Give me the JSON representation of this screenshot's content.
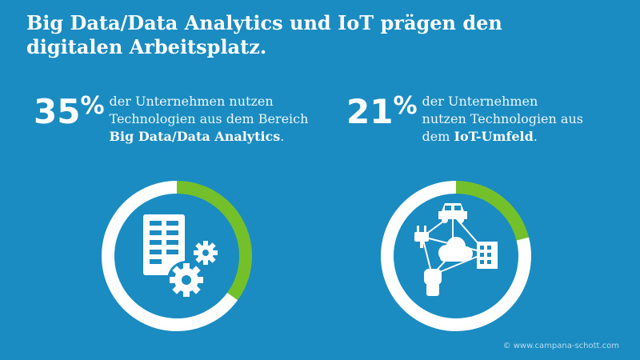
{
  "title": {
    "line1": "Big Data/Data Analytics und IoT prägen den",
    "line2": "digitalen Arbeitsplatz."
  },
  "stats": [
    {
      "value": "35",
      "unit": "%",
      "text_a": "der Unternehmen nutzen",
      "text_b": "Technologien aus dem Bereich",
      "text_bold": "Big Data/Data Analytics",
      "text_end": "."
    },
    {
      "value": "21",
      "unit": "%",
      "text_a": "der Unternehmen",
      "text_b": "nutzen Technologien aus",
      "text_c": "dem",
      "text_bold": "IoT-Umfeld",
      "text_end": "."
    }
  ],
  "chart_data": [
    {
      "type": "pie",
      "style": "donut",
      "categories": [
        "Big Data/Data Analytics",
        ""
      ],
      "values": [
        35,
        65
      ],
      "colors": [
        "#73c02a",
        "#ffffff"
      ],
      "center_icon": "server-gears-icon"
    },
    {
      "type": "pie",
      "style": "donut",
      "categories": [
        "IoT-Umfeld",
        ""
      ],
      "values": [
        21,
        79
      ],
      "colors": [
        "#73c02a",
        "#ffffff"
      ],
      "center_icon": "iot-network-icon"
    }
  ],
  "copyright": "© www.campana-schott.com"
}
